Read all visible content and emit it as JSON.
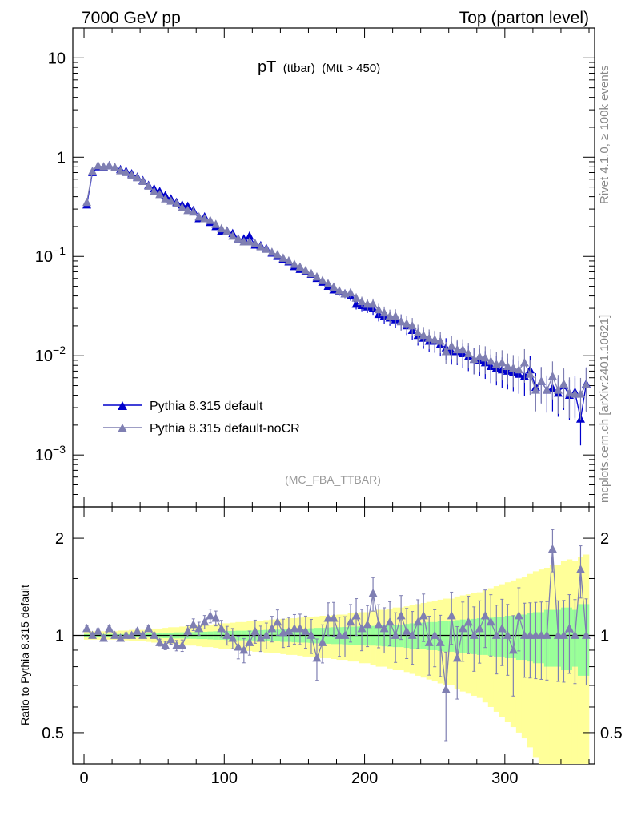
{
  "header": {
    "left": "7000 GeV pp",
    "right": "Top (parton level)"
  },
  "side_labels": {
    "rivet": "Rivet 4.1.0, ≥ 100k events",
    "mcplots": "mcplots.cern.ch [arXiv:2401.10621]"
  },
  "plot_title": {
    "main": "pT",
    "sub1": "(ttbar)",
    "sub2": "(Mtt > 450)"
  },
  "analysis_tag": "(MC_FBA_TTBAR)",
  "colors": {
    "series_default": "#0000cc",
    "series_nocr": "#7f7fb2",
    "band_inner": "#99ff99",
    "band_outer": "#ffff99"
  },
  "chart_data": [
    {
      "type": "line",
      "title": "pT (ttbar) (Mtt > 450)",
      "xlabel": "",
      "ylabel": "",
      "yscale": "log",
      "xlim": [
        -8,
        364
      ],
      "ylim": [
        0.0003,
        20
      ],
      "x_ticks": [
        0,
        100,
        200,
        300
      ],
      "y_ticks": [
        {
          "value": 10,
          "base": "10",
          "exp": ""
        },
        {
          "value": 1,
          "base": "1",
          "exp": ""
        },
        {
          "value": 0.1,
          "base": "10",
          "exp": "−1"
        },
        {
          "value": 0.01,
          "base": "10",
          "exp": "−2"
        },
        {
          "value": 0.001,
          "base": "10",
          "exp": "−3"
        }
      ],
      "legend": {
        "position": "lower-left",
        "entries": [
          "Pythia 8.315 default",
          "Pythia 8.315 default-noCR"
        ]
      },
      "series": [
        {
          "name": "Pythia 8.315 default",
          "color": "#0000cc",
          "x": [
            2,
            6,
            10,
            14,
            18,
            22,
            26,
            30,
            34,
            38,
            42,
            46,
            50,
            54,
            58,
            62,
            66,
            70,
            74,
            78,
            82,
            86,
            90,
            94,
            98,
            102,
            106,
            110,
            114,
            118,
            122,
            126,
            130,
            134,
            138,
            142,
            146,
            150,
            154,
            158,
            162,
            166,
            170,
            174,
            178,
            182,
            186,
            190,
            194,
            198,
            202,
            206,
            210,
            214,
            218,
            222,
            226,
            230,
            234,
            238,
            242,
            246,
            250,
            254,
            258,
            262,
            266,
            270,
            274,
            278,
            282,
            286,
            290,
            294,
            298,
            302,
            306,
            310,
            314,
            318,
            322,
            326,
            330,
            334,
            338,
            342,
            346,
            350,
            354,
            358
          ],
          "y": [
            0.33,
            0.7,
            0.8,
            0.79,
            0.82,
            0.78,
            0.75,
            0.72,
            0.68,
            0.63,
            0.58,
            0.52,
            0.48,
            0.45,
            0.41,
            0.38,
            0.35,
            0.33,
            0.32,
            0.29,
            0.24,
            0.25,
            0.22,
            0.2,
            0.18,
            0.18,
            0.17,
            0.15,
            0.15,
            0.16,
            0.13,
            0.128,
            0.12,
            0.108,
            0.1,
            0.094,
            0.088,
            0.079,
            0.074,
            0.07,
            0.066,
            0.06,
            0.055,
            0.05,
            0.046,
            0.044,
            0.042,
            0.04,
            0.033,
            0.032,
            0.031,
            0.03,
            0.026,
            0.025,
            0.024,
            0.023,
            0.022,
            0.02,
            0.018,
            0.016,
            0.015,
            0.014,
            0.014,
            0.013,
            0.012,
            0.011,
            0.011,
            0.0105,
            0.0098,
            0.0092,
            0.009,
            0.0085,
            0.0078,
            0.0075,
            0.0072,
            0.007,
            0.0068,
            0.0065,
            0.0062,
            0.0072,
            0.0048,
            0.0055,
            0.0045,
            0.0047,
            0.0042,
            0.005,
            0.004,
            0.0043,
            0.0023,
            0.0052
          ]
        },
        {
          "name": "Pythia 8.315 default-noCR",
          "color": "#7f7fb2",
          "x": [
            2,
            6,
            10,
            14,
            18,
            22,
            26,
            30,
            34,
            38,
            42,
            46,
            50,
            54,
            58,
            62,
            66,
            70,
            74,
            78,
            82,
            86,
            90,
            94,
            98,
            102,
            106,
            110,
            114,
            118,
            122,
            126,
            130,
            134,
            138,
            142,
            146,
            150,
            154,
            158,
            162,
            166,
            170,
            174,
            178,
            182,
            186,
            190,
            194,
            198,
            202,
            206,
            210,
            214,
            218,
            222,
            226,
            230,
            234,
            238,
            242,
            246,
            250,
            254,
            258,
            262,
            266,
            270,
            274,
            278,
            282,
            286,
            290,
            294,
            298,
            302,
            306,
            310,
            314,
            318,
            322,
            326,
            330,
            334,
            338,
            342,
            346,
            350,
            354,
            358
          ],
          "y": [
            0.35,
            0.72,
            0.82,
            0.8,
            0.82,
            0.79,
            0.73,
            0.7,
            0.66,
            0.62,
            0.57,
            0.51,
            0.45,
            0.42,
            0.38,
            0.36,
            0.34,
            0.31,
            0.29,
            0.28,
            0.25,
            0.24,
            0.23,
            0.21,
            0.19,
            0.18,
            0.16,
            0.15,
            0.14,
            0.14,
            0.135,
            0.125,
            0.118,
            0.11,
            0.104,
            0.096,
            0.09,
            0.083,
            0.078,
            0.072,
            0.067,
            0.062,
            0.057,
            0.053,
            0.049,
            0.045,
            0.042,
            0.043,
            0.038,
            0.035,
            0.033,
            0.033,
            0.029,
            0.027,
            0.025,
            0.025,
            0.022,
            0.021,
            0.02,
            0.017,
            0.016,
            0.015,
            0.0145,
            0.014,
            0.011,
            0.0125,
            0.0115,
            0.0115,
            0.0105,
            0.0092,
            0.0098,
            0.0095,
            0.0088,
            0.0082,
            0.0085,
            0.0078,
            0.0075,
            0.0072,
            0.0085,
            0.0065,
            0.0045,
            0.0055,
            0.0045,
            0.0062,
            0.0045,
            0.0052,
            0.0042,
            0.0041,
            0.0041,
            0.0051
          ]
        }
      ]
    },
    {
      "type": "line",
      "title": "",
      "xlabel": "",
      "ylabel": "Ratio to Pythia 8.315 default",
      "yscale": "log",
      "xlim": [
        -8,
        364
      ],
      "ylim": [
        0.4,
        2.5
      ],
      "x_ticks": [
        0,
        100,
        200,
        300
      ],
      "y_ticks": [
        {
          "value": 2,
          "label": "2"
        },
        {
          "value": 1,
          "label": "1"
        },
        {
          "value": 0.5,
          "label": "0.5"
        }
      ],
      "reference_line": 1,
      "series": [
        {
          "name": "Pythia 8.315 default-noCR / Pythia 8.315 default",
          "color": "#7f7fb2",
          "x": [
            2,
            6,
            10,
            14,
            18,
            22,
            26,
            30,
            34,
            38,
            42,
            46,
            50,
            54,
            58,
            62,
            66,
            70,
            74,
            78,
            82,
            86,
            90,
            94,
            98,
            102,
            106,
            110,
            114,
            118,
            122,
            126,
            130,
            134,
            138,
            142,
            146,
            150,
            154,
            158,
            162,
            166,
            170,
            174,
            178,
            182,
            186,
            190,
            194,
            198,
            202,
            206,
            210,
            214,
            218,
            222,
            226,
            230,
            234,
            238,
            242,
            246,
            250,
            254,
            258,
            262,
            266,
            270,
            274,
            278,
            282,
            286,
            290,
            294,
            298,
            302,
            306,
            310,
            314,
            318,
            322,
            326,
            330,
            334,
            338,
            342,
            346,
            350,
            354,
            358
          ],
          "y": [
            1.05,
            1.0,
            1.03,
            0.98,
            1.05,
            1.0,
            0.98,
            1.0,
            1.0,
            1.03,
            1.0,
            1.05,
            1.0,
            0.95,
            0.93,
            0.97,
            0.93,
            0.93,
            1.03,
            1.08,
            1.05,
            1.1,
            1.15,
            1.13,
            1.05,
            1.0,
            0.98,
            0.92,
            0.9,
            0.95,
            1.03,
            0.98,
            1.0,
            1.05,
            1.1,
            1.02,
            1.03,
            1.05,
            1.05,
            1.03,
            1.0,
            0.85,
            0.95,
            1.13,
            1.13,
            1.0,
            1.0,
            1.1,
            1.15,
            1.05,
            1.08,
            1.35,
            1.08,
            1.05,
            1.1,
            1.0,
            1.15,
            1.03,
            1.0,
            1.1,
            1.15,
            0.95,
            1.0,
            0.95,
            0.68,
            1.15,
            0.85,
            1.05,
            1.1,
            1.0,
            1.05,
            1.15,
            1.1,
            1.0,
            1.05,
            1.0,
            0.9,
            1.15,
            1.0,
            1.0,
            1.0,
            1.0,
            1.0,
            1.85,
            1.0,
            1.0,
            1.05,
            1.0,
            1.6,
            1.0
          ]
        }
      ],
      "bands": {
        "x": [
          0,
          4,
          8,
          12,
          16,
          20,
          24,
          28,
          32,
          36,
          40,
          44,
          48,
          52,
          56,
          60,
          64,
          68,
          72,
          76,
          80,
          84,
          88,
          92,
          96,
          100,
          104,
          108,
          112,
          116,
          120,
          124,
          128,
          132,
          136,
          140,
          144,
          148,
          152,
          156,
          160,
          164,
          168,
          172,
          176,
          180,
          184,
          188,
          192,
          196,
          200,
          204,
          208,
          212,
          216,
          220,
          224,
          228,
          232,
          236,
          240,
          244,
          248,
          252,
          256,
          260,
          264,
          268,
          272,
          276,
          280,
          284,
          288,
          292,
          296,
          300,
          304,
          308,
          312,
          316,
          320,
          324,
          328,
          332,
          336,
          340,
          344,
          348,
          352,
          356,
          360
        ],
        "inner_half_width": [
          0.01,
          0.01,
          0.01,
          0.01,
          0.01,
          0.01,
          0.01,
          0.01,
          0.01,
          0.01,
          0.012,
          0.014,
          0.016,
          0.018,
          0.02,
          0.02,
          0.022,
          0.022,
          0.024,
          0.024,
          0.026,
          0.026,
          0.028,
          0.03,
          0.03,
          0.032,
          0.032,
          0.034,
          0.034,
          0.036,
          0.036,
          0.038,
          0.04,
          0.04,
          0.042,
          0.045,
          0.045,
          0.048,
          0.05,
          0.05,
          0.052,
          0.055,
          0.055,
          0.058,
          0.06,
          0.06,
          0.062,
          0.065,
          0.065,
          0.068,
          0.07,
          0.07,
          0.072,
          0.075,
          0.078,
          0.08,
          0.08,
          0.085,
          0.09,
          0.09,
          0.095,
          0.1,
          0.1,
          0.105,
          0.11,
          0.11,
          0.115,
          0.12,
          0.12,
          0.125,
          0.13,
          0.13,
          0.135,
          0.14,
          0.14,
          0.15,
          0.15,
          0.16,
          0.16,
          0.17,
          0.18,
          0.18,
          0.2,
          0.2,
          0.2,
          0.22,
          0.22,
          0.2,
          0.25,
          0.25
        ],
        "outer_half_width": [
          0.03,
          0.03,
          0.03,
          0.03,
          0.03,
          0.03,
          0.035,
          0.035,
          0.04,
          0.04,
          0.04,
          0.045,
          0.05,
          0.05,
          0.055,
          0.06,
          0.06,
          0.065,
          0.07,
          0.07,
          0.075,
          0.08,
          0.08,
          0.085,
          0.09,
          0.09,
          0.095,
          0.1,
          0.1,
          0.105,
          0.11,
          0.11,
          0.115,
          0.12,
          0.12,
          0.125,
          0.13,
          0.13,
          0.135,
          0.14,
          0.14,
          0.145,
          0.15,
          0.15,
          0.155,
          0.16,
          0.16,
          0.17,
          0.17,
          0.18,
          0.18,
          0.19,
          0.2,
          0.2,
          0.21,
          0.22,
          0.22,
          0.23,
          0.24,
          0.25,
          0.26,
          0.27,
          0.28,
          0.29,
          0.3,
          0.3,
          0.32,
          0.33,
          0.34,
          0.35,
          0.36,
          0.38,
          0.4,
          0.42,
          0.44,
          0.46,
          0.48,
          0.5,
          0.52,
          0.55,
          0.58,
          0.6,
          0.62,
          0.65,
          0.65,
          0.7,
          0.72,
          0.7,
          0.75,
          0.78
        ]
      }
    }
  ]
}
